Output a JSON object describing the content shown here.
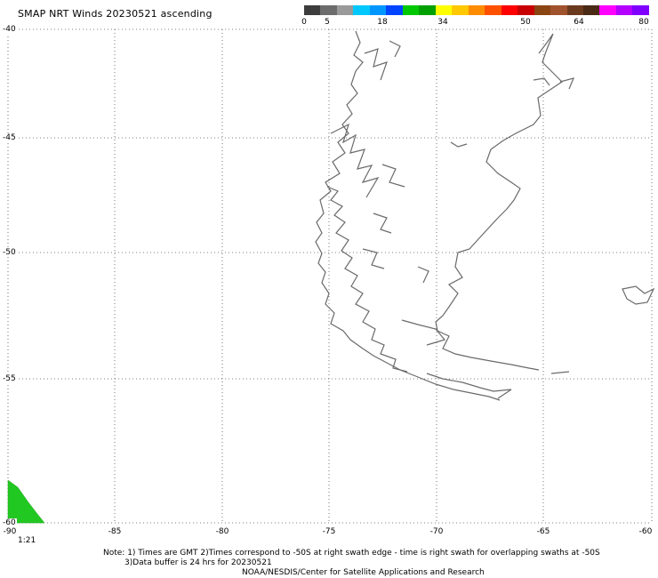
{
  "title": "SMAP NRT Winds 20230521 ascending",
  "legend": {
    "labels": [
      "0",
      "5",
      "18",
      "34",
      "50",
      "64",
      "80"
    ],
    "colors": [
      "#3d3d3d",
      "#6c6c6c",
      "#9a9a9a",
      "#00c8ff",
      "#0096ff",
      "#0044ff",
      "#00c800",
      "#00a000",
      "#ffff00",
      "#ffc800",
      "#ff8c00",
      "#ff5000",
      "#ff0000",
      "#c80000",
      "#8b4513",
      "#a0522d",
      "#6b3a1e",
      "#4a2a14",
      "#ff00ff",
      "#b400ff",
      "#8000ff"
    ]
  },
  "axes": {
    "lat_labels": [
      "-40",
      "-45",
      "-50",
      "-55",
      "-60"
    ],
    "lon_labels": [
      "-90",
      "-85",
      "-80",
      "-75",
      "-70",
      "-65",
      "-60"
    ]
  },
  "swath_time": "1:21",
  "notes": {
    "line1": "Note: 1) Times are GMT 2)Times correspond to -50S at right swath edge - time is right swath for overlapping swaths at -50S",
    "line2": "3)Data buffer is 24 hrs for 20230521",
    "line3": "NOAA/NESDIS/Center for Satellite Applications and Research"
  },
  "swath_color": "#22c822",
  "coast_color": "#6a6a6a"
}
